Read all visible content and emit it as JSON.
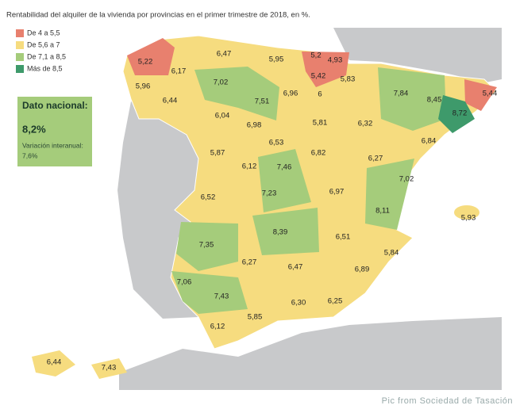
{
  "title": "Rentabilidad del alquiler de la vivienda por provincias en el primer trimestre de 2018, en %.",
  "legend": [
    {
      "label": "De 4 a 5,5",
      "color": "#e8806e"
    },
    {
      "label": "De 5,6 a 7",
      "color": "#f6dc7f"
    },
    {
      "label": "De 7,1 a 8,5",
      "color": "#a5cc7b"
    },
    {
      "label": "Más de 8,5",
      "color": "#3e9a6b"
    }
  ],
  "national": {
    "heading": "Dato nacional:",
    "value": "8,2%",
    "change_label": "Variación interanual:",
    "change_value": "7,6%"
  },
  "provinces": [
    "5,22",
    "6,47",
    "5,95",
    "5,2",
    "4,93",
    "5,42",
    "6,17",
    "5,96",
    "6,44",
    "7,02",
    "7,51",
    "6,96",
    "6",
    "5,83",
    "7,84",
    "8,45",
    "8,72",
    "5,44",
    "6,04",
    "6,98",
    "5,81",
    "6,32",
    "6,84",
    "5,87",
    "6,53",
    "6,82",
    "6,27",
    "6,12",
    "7,46",
    "7,02",
    "6,52",
    "7,23",
    "6,97",
    "8,11",
    "5,93",
    "8,39",
    "6,51",
    "5,84",
    "7,35",
    "6,27",
    "6,47",
    "6,89",
    "7,06",
    "7,43",
    "6,30",
    "6,25",
    "6,12",
    "5,85",
    "6,44",
    "7,43"
  ],
  "caption": "Pic from Sociedad de Tasación"
}
